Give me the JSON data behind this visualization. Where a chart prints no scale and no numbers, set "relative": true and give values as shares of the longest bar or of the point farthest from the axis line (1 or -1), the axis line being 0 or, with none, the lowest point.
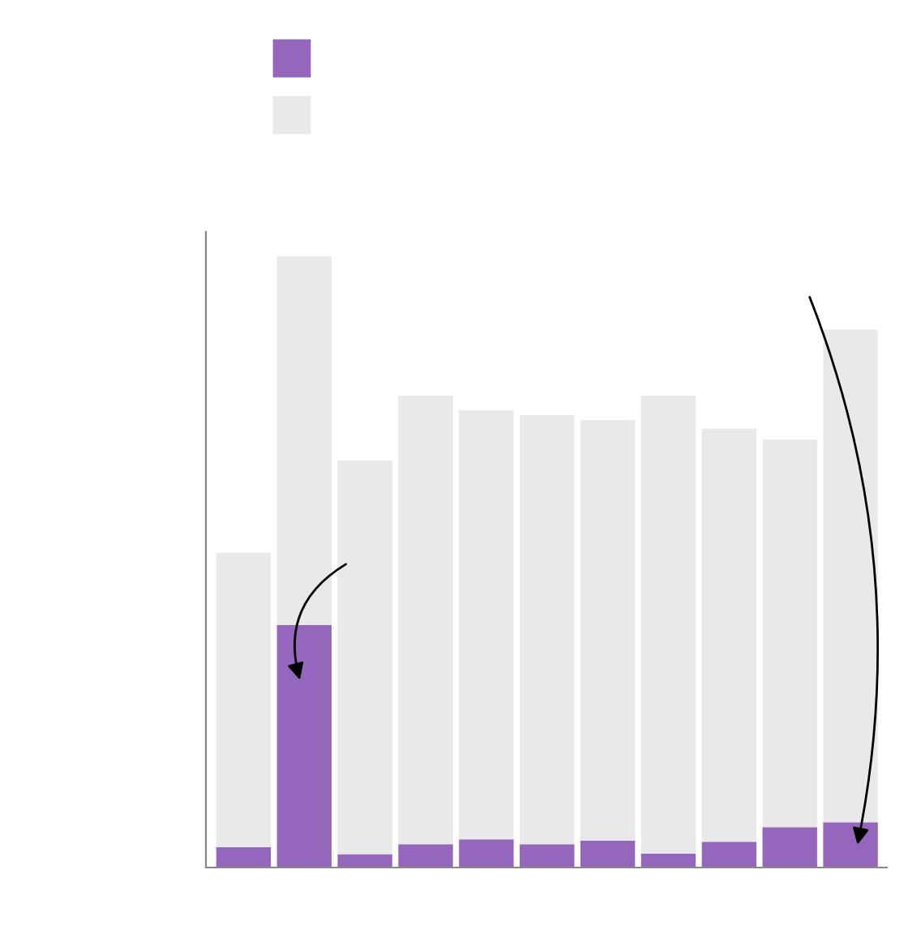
{
  "chart_data": {
    "type": "bar",
    "relative": true,
    "stacked": true,
    "categories": [
      null,
      null,
      null,
      null,
      null,
      null,
      null,
      null,
      null,
      null,
      null
    ],
    "series": [
      {
        "color": "#9467bd",
        "values": [
          0.033,
          0.397,
          0.022,
          0.038,
          0.046,
          0.038,
          0.044,
          0.023,
          0.042,
          0.066,
          0.074
        ]
      },
      {
        "color": "#e9e9e9",
        "values": [
          0.482,
          0.603,
          0.644,
          0.734,
          0.702,
          0.702,
          0.688,
          0.749,
          0.676,
          0.634,
          0.806
        ]
      }
    ]
  }
}
